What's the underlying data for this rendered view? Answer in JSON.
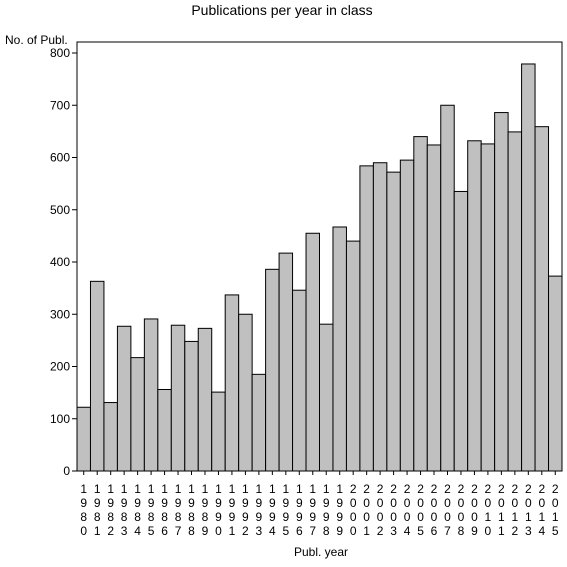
{
  "colors": {
    "bar_fill": "#c0c0c0",
    "bar_stroke": "#000000",
    "background": "#ffffff"
  },
  "chart_data": {
    "type": "bar",
    "title": "Publications per year in class",
    "xlabel": "Publ. year",
    "ylabel": "No. of Publ.",
    "ylim": [
      0,
      800
    ],
    "yticks": [
      0,
      100,
      200,
      300,
      400,
      500,
      600,
      700,
      800
    ],
    "grid": false,
    "categories": [
      "1980",
      "1981",
      "1982",
      "1983",
      "1984",
      "1985",
      "1986",
      "1987",
      "1988",
      "1989",
      "1990",
      "1991",
      "1992",
      "1993",
      "1994",
      "1995",
      "1996",
      "1997",
      "1998",
      "1999",
      "2000",
      "2001",
      "2002",
      "2003",
      "2004",
      "2005",
      "2006",
      "2007",
      "2008",
      "2009",
      "2010",
      "2011",
      "2012",
      "2013",
      "2014",
      "2015"
    ],
    "values": [
      122,
      363,
      131,
      277,
      217,
      291,
      156,
      279,
      248,
      273,
      151,
      337,
      300,
      185,
      386,
      417,
      346,
      455,
      281,
      467,
      440,
      584,
      590,
      572,
      595,
      640,
      624,
      700,
      535,
      632,
      626,
      686,
      649,
      779,
      659,
      373
    ]
  }
}
